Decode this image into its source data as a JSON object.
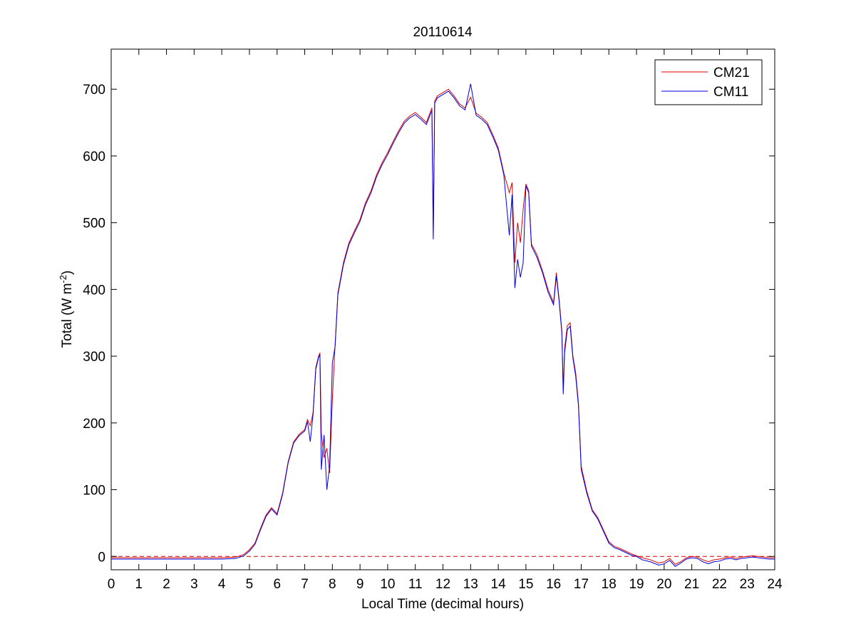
{
  "chart_data": {
    "type": "line",
    "title": "20110614",
    "xlabel": "Local Time (decimal hours)",
    "ylabel_parts": [
      "Total (W m",
      "-2",
      ")"
    ],
    "xlim": [
      0,
      24
    ],
    "ylim": [
      -20,
      760
    ],
    "xticks": [
      0,
      1,
      2,
      3,
      4,
      5,
      6,
      7,
      8,
      9,
      10,
      11,
      12,
      13,
      14,
      15,
      16,
      17,
      18,
      19,
      20,
      21,
      22,
      23,
      24
    ],
    "yticks": [
      0,
      100,
      200,
      300,
      400,
      500,
      600,
      700
    ],
    "grid": false,
    "legend_position": "top-right",
    "reference_line": {
      "y": 0,
      "color": "#cc0000",
      "style": "dashed"
    },
    "series": [
      {
        "name": "CM21",
        "color": "#e00000",
        "x": [
          0,
          0.5,
          1,
          1.5,
          2,
          2.5,
          3,
          3.5,
          4,
          4.5,
          4.8,
          5,
          5.2,
          5.4,
          5.6,
          5.8,
          6,
          6.2,
          6.4,
          6.6,
          6.8,
          7,
          7.1,
          7.2,
          7.3,
          7.4,
          7.5,
          7.55,
          7.6,
          7.7,
          7.8,
          7.9,
          8,
          8.1,
          8.2,
          8.4,
          8.6,
          8.8,
          9,
          9.2,
          9.4,
          9.6,
          9.8,
          10,
          10.2,
          10.4,
          10.6,
          10.8,
          11,
          11.2,
          11.4,
          11.6,
          11.65,
          11.7,
          11.8,
          12,
          12.2,
          12.4,
          12.6,
          12.8,
          13,
          13.2,
          13.4,
          13.6,
          13.8,
          14,
          14.2,
          14.4,
          14.5,
          14.6,
          14.7,
          14.8,
          14.9,
          15,
          15.1,
          15.2,
          15.4,
          15.6,
          15.8,
          16,
          16.1,
          16.2,
          16.3,
          16.35,
          16.4,
          16.5,
          16.6,
          16.7,
          16.8,
          16.9,
          17,
          17.2,
          17.4,
          17.6,
          17.8,
          18,
          18.2,
          18.4,
          18.6,
          18.8,
          19,
          19.2,
          19.5,
          19.8,
          20,
          20.2,
          20.4,
          20.6,
          20.8,
          21,
          21.2,
          21.4,
          21.6,
          21.8,
          22,
          22.2,
          22.4,
          22.6,
          22.8,
          23,
          23.2,
          23.4,
          23.6,
          23.8,
          24
        ],
        "values": [
          -2,
          -2,
          -2,
          -2,
          -2,
          -2,
          -2,
          -2,
          -2,
          -1,
          3,
          10,
          20,
          42,
          62,
          73,
          64,
          95,
          142,
          172,
          183,
          190,
          205,
          196,
          215,
          283,
          300,
          305,
          185,
          148,
          162,
          125,
          235,
          318,
          395,
          440,
          470,
          488,
          505,
          530,
          548,
          572,
          590,
          605,
          622,
          638,
          652,
          660,
          665,
          658,
          650,
          672,
          478,
          682,
          690,
          695,
          700,
          690,
          678,
          672,
          688,
          664,
          658,
          650,
          632,
          612,
          575,
          545,
          560,
          440,
          500,
          470,
          520,
          558,
          548,
          468,
          452,
          428,
          400,
          380,
          425,
          386,
          338,
          250,
          312,
          346,
          350,
          300,
          275,
          230,
          135,
          98,
          70,
          58,
          40,
          22,
          15,
          12,
          8,
          4,
          1,
          -2,
          -5,
          -10,
          -8,
          -3,
          -12,
          -8,
          -2,
          0,
          -1,
          -5,
          -8,
          -5,
          -4,
          -2,
          -1,
          -3,
          -1,
          0,
          1,
          0,
          -1,
          -2,
          -2
        ]
      },
      {
        "name": "CM11",
        "color": "#0000e0",
        "x": [
          0,
          0.5,
          1,
          1.5,
          2,
          2.5,
          3,
          3.5,
          4,
          4.5,
          4.8,
          5,
          5.2,
          5.4,
          5.6,
          5.8,
          6,
          6.2,
          6.4,
          6.6,
          6.8,
          7,
          7.1,
          7.2,
          7.3,
          7.4,
          7.5,
          7.55,
          7.6,
          7.7,
          7.8,
          7.9,
          8,
          8.1,
          8.2,
          8.4,
          8.6,
          8.8,
          9,
          9.2,
          9.4,
          9.6,
          9.8,
          10,
          10.2,
          10.4,
          10.6,
          10.8,
          11,
          11.2,
          11.4,
          11.6,
          11.65,
          11.7,
          11.8,
          12,
          12.2,
          12.4,
          12.6,
          12.8,
          13,
          13.2,
          13.4,
          13.6,
          13.8,
          14,
          14.2,
          14.4,
          14.5,
          14.6,
          14.7,
          14.8,
          14.9,
          15,
          15.1,
          15.2,
          15.4,
          15.6,
          15.8,
          16,
          16.1,
          16.2,
          16.3,
          16.35,
          16.4,
          16.5,
          16.6,
          16.7,
          16.8,
          16.9,
          17,
          17.2,
          17.4,
          17.6,
          17.8,
          18,
          18.2,
          18.4,
          18.6,
          18.8,
          19,
          19.2,
          19.5,
          19.8,
          20,
          20.2,
          20.4,
          20.6,
          20.8,
          21,
          21.2,
          21.4,
          21.6,
          21.8,
          22,
          22.2,
          22.4,
          22.6,
          22.8,
          23,
          23.2,
          23.4,
          23.6,
          23.8,
          24
        ],
        "values": [
          -4,
          -4,
          -4,
          -4,
          -4,
          -4,
          -4,
          -4,
          -4,
          -3,
          1,
          8,
          18,
          40,
          60,
          71,
          62,
          93,
          140,
          170,
          181,
          188,
          202,
          172,
          212,
          280,
          298,
          302,
          130,
          182,
          100,
          135,
          290,
          315,
          392,
          437,
          467,
          485,
          502,
          527,
          545,
          569,
          587,
          602,
          619,
          635,
          649,
          657,
          662,
          655,
          647,
          668,
          475,
          679,
          687,
          692,
          697,
          687,
          675,
          669,
          708,
          661,
          655,
          647,
          629,
          609,
          572,
          481,
          542,
          402,
          445,
          418,
          440,
          555,
          545,
          465,
          448,
          425,
          396,
          377,
          420,
          383,
          335,
          243,
          305,
          340,
          345,
          297,
          270,
          226,
          130,
          95,
          68,
          56,
          38,
          20,
          13,
          10,
          6,
          2,
          0,
          -5,
          -8,
          -13,
          -11,
          -6,
          -15,
          -10,
          -4,
          -2,
          -3,
          -8,
          -11,
          -8,
          -7,
          -4,
          -3,
          -5,
          -3,
          -2,
          -1,
          -2,
          -3,
          -4,
          -4
        ]
      }
    ]
  }
}
